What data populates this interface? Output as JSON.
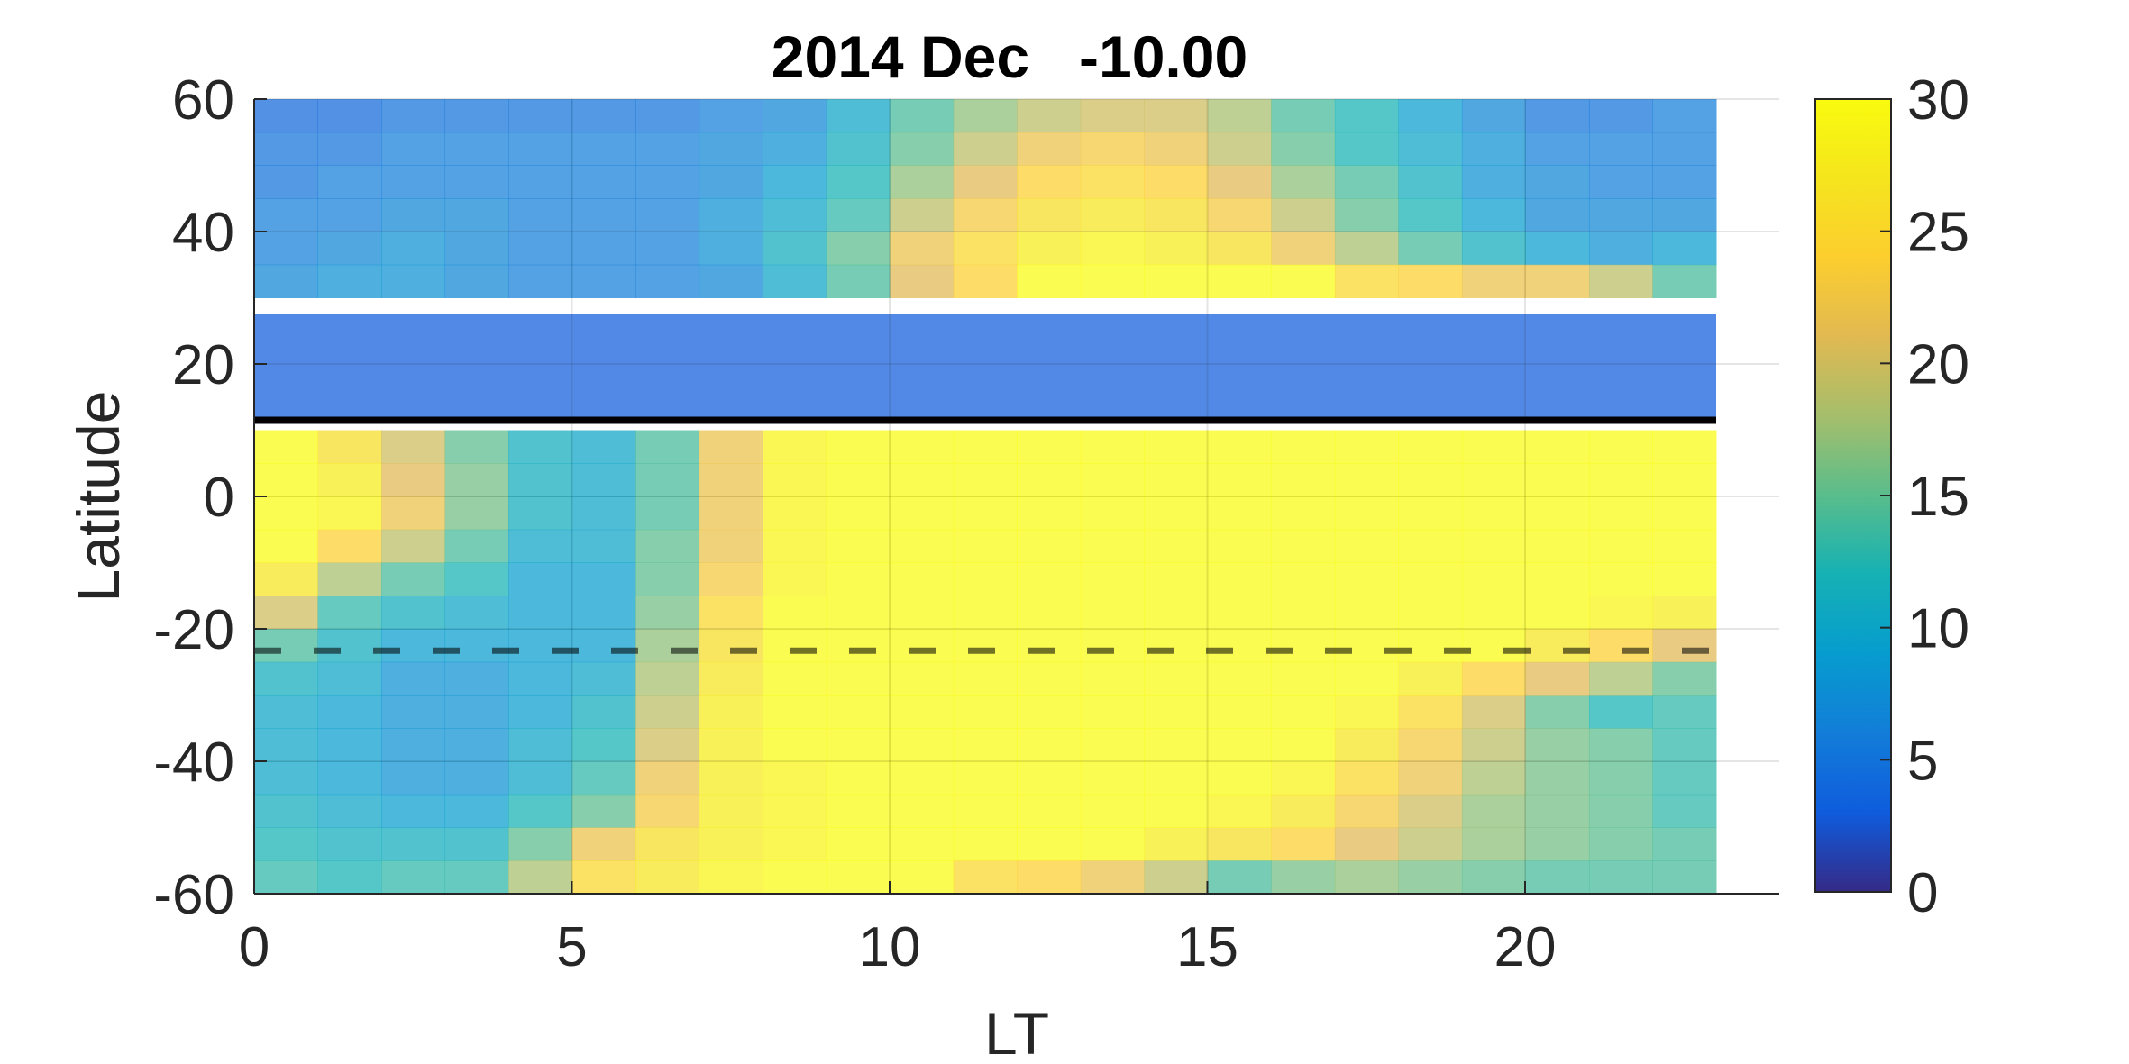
{
  "chart_data": {
    "type": "heatmap",
    "title": "2014 Dec   -10.00",
    "xlabel": "LT",
    "ylabel": "Latitude",
    "xlim": [
      0,
      24
    ],
    "ylim": [
      -60,
      60
    ],
    "x_ticks": [
      0,
      5,
      10,
      15,
      20
    ],
    "y_ticks": [
      60,
      40,
      20,
      0,
      -20,
      -40,
      -60
    ],
    "colorbar": {
      "range": [
        0,
        30
      ],
      "ticks": [
        30,
        25,
        20,
        15,
        10,
        5,
        0
      ],
      "colormap": "parula"
    },
    "grid": true,
    "x_step_hours": 1,
    "x_columns": [
      0,
      1,
      2,
      3,
      4,
      5,
      6,
      7,
      8,
      9,
      10,
      11,
      12,
      13,
      14,
      15,
      16,
      17,
      18,
      19,
      20,
      21,
      22
    ],
    "lat_step": 5,
    "lat_rows_top_edge": [
      60,
      55,
      50,
      45,
      40,
      35
    ],
    "values_north": [
      [
        4,
        4,
        5,
        5,
        5,
        5,
        5,
        6,
        7,
        10,
        14,
        17,
        19,
        20,
        20,
        18,
        14,
        12,
        9,
        7,
        5,
        5,
        6
      ],
      [
        5,
        5,
        6,
        6,
        6,
        6,
        6,
        7,
        8,
        11,
        15,
        19,
        22,
        23,
        22,
        19,
        15,
        12,
        10,
        8,
        6,
        6,
        6
      ],
      [
        5,
        6,
        6,
        6,
        6,
        6,
        6,
        7,
        9,
        12,
        17,
        21,
        24,
        25,
        24,
        21,
        17,
        14,
        11,
        8,
        7,
        6,
        6
      ],
      [
        6,
        6,
        7,
        7,
        6,
        6,
        6,
        8,
        10,
        13,
        19,
        23,
        26,
        27,
        26,
        23,
        19,
        15,
        12,
        9,
        7,
        7,
        7
      ],
      [
        6,
        7,
        8,
        7,
        6,
        6,
        6,
        8,
        11,
        15,
        22,
        25,
        28,
        29,
        28,
        26,
        22,
        18,
        14,
        11,
        9,
        8,
        9
      ],
      [
        7,
        8,
        8,
        7,
        6,
        6,
        6,
        7,
        10,
        14,
        21,
        24,
        30,
        30,
        30,
        30,
        30,
        25,
        24,
        22,
        22,
        19,
        14
      ]
    ],
    "band_20_to_27": {
      "value": 3,
      "lat_range": [
        11.5,
        27.5
      ]
    },
    "solid_line_lat": 11.5,
    "dashed_line_lat": -23.3,
    "lat_rows_south_top_edge": [
      10,
      5,
      0,
      -5,
      -10,
      -15,
      -20,
      -25,
      -30,
      -35,
      -40,
      -45,
      -50,
      -55
    ],
    "values_south": [
      [
        30,
        26,
        20,
        15,
        11,
        10,
        14,
        22,
        29,
        30,
        30,
        30,
        30,
        30,
        30,
        30,
        30,
        30,
        30,
        30,
        30,
        30,
        30
      ],
      [
        30,
        28,
        21,
        16,
        11,
        10,
        14,
        22,
        29,
        30,
        30,
        30,
        30,
        30,
        30,
        30,
        30,
        30,
        30,
        30,
        30,
        30,
        30
      ],
      [
        30,
        29,
        22,
        16,
        11,
        10,
        14,
        22,
        29,
        30,
        30,
        30,
        30,
        30,
        30,
        30,
        30,
        30,
        30,
        30,
        30,
        30,
        30
      ],
      [
        30,
        24,
        19,
        14,
        10,
        10,
        15,
        22,
        29,
        30,
        30,
        30,
        30,
        30,
        30,
        30,
        30,
        30,
        30,
        30,
        30,
        30,
        30
      ],
      [
        27,
        18,
        14,
        12,
        9,
        9,
        15,
        23,
        29,
        30,
        30,
        30,
        30,
        30,
        30,
        30,
        30,
        30,
        30,
        30,
        30,
        30,
        30
      ],
      [
        20,
        13,
        11,
        10,
        9,
        9,
        16,
        25,
        30,
        30,
        30,
        30,
        30,
        30,
        30,
        30,
        30,
        30,
        30,
        30,
        30,
        29,
        28
      ],
      [
        14,
        11,
        9,
        9,
        9,
        9,
        17,
        26,
        30,
        30,
        30,
        30,
        30,
        30,
        30,
        30,
        30,
        30,
        30,
        30,
        27,
        24,
        21
      ],
      [
        11,
        10,
        8,
        8,
        9,
        10,
        18,
        27,
        30,
        30,
        30,
        30,
        30,
        30,
        30,
        30,
        30,
        30,
        28,
        24,
        21,
        18,
        15
      ],
      [
        10,
        9,
        8,
        8,
        9,
        11,
        19,
        28,
        30,
        30,
        30,
        30,
        30,
        30,
        30,
        30,
        30,
        29,
        25,
        20,
        15,
        12,
        13
      ],
      [
        10,
        9,
        8,
        8,
        10,
        12,
        20,
        28,
        30,
        30,
        30,
        30,
        30,
        30,
        30,
        30,
        30,
        27,
        23,
        19,
        16,
        15,
        13
      ],
      [
        10,
        9,
        8,
        8,
        10,
        13,
        22,
        28,
        29,
        30,
        30,
        30,
        30,
        30,
        30,
        30,
        29,
        25,
        22,
        18,
        16,
        15,
        13
      ],
      [
        11,
        10,
        9,
        9,
        12,
        15,
        23,
        28,
        29,
        30,
        30,
        30,
        30,
        30,
        30,
        29,
        27,
        23,
        20,
        17,
        16,
        15,
        13
      ],
      [
        12,
        11,
        11,
        11,
        15,
        22,
        26,
        28,
        29,
        30,
        30,
        30,
        30,
        30,
        28,
        26,
        24,
        21,
        19,
        17,
        16,
        15,
        14
      ],
      [
        13,
        12,
        13,
        13,
        18,
        25,
        27,
        29,
        30,
        30,
        30,
        25,
        24,
        22,
        19,
        14,
        16,
        17,
        16,
        15,
        14,
        14,
        14
      ]
    ]
  }
}
